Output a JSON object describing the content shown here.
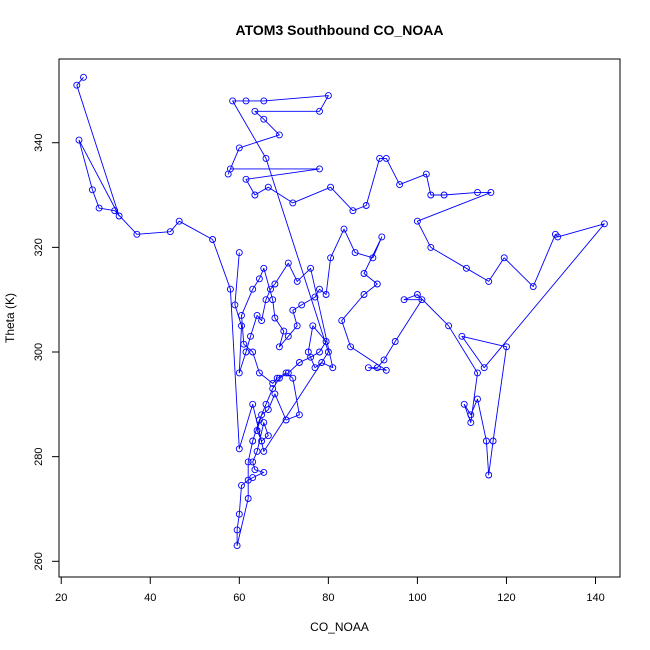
{
  "chart_data": {
    "type": "scatter",
    "title": "ATOM3 Southbound CO_NOAA",
    "xlabel": "CO_NOAA",
    "ylabel": "Theta (K)",
    "xlim": [
      19.5,
      145.5
    ],
    "ylim": [
      257,
      356
    ],
    "xticks": [
      20,
      40,
      60,
      80,
      100,
      120,
      140
    ],
    "yticks": [
      260,
      280,
      300,
      320,
      340
    ],
    "grid": false,
    "legend": "none",
    "colors": {
      "series": "#0000ff",
      "axis": "#000000",
      "background": "#ffffff"
    },
    "series": [
      {
        "style": "line-and-points",
        "points": [
          [
            25,
            352.5
          ],
          [
            23.5,
            351
          ],
          [
            33,
            326
          ],
          [
            24,
            340.5
          ],
          [
            27,
            331
          ],
          [
            28.5,
            327.5
          ],
          [
            32,
            327
          ],
          [
            37,
            322.5
          ],
          [
            44.5,
            323
          ],
          [
            46.5,
            325
          ],
          [
            54,
            321.5
          ],
          [
            58,
            312
          ],
          [
            60,
            281.5
          ],
          [
            63,
            290
          ],
          [
            65.5,
            281
          ],
          [
            80,
            300
          ],
          [
            66,
            337
          ],
          [
            58.5,
            348
          ],
          [
            61.5,
            348
          ],
          [
            65.5,
            348
          ],
          [
            80,
            349
          ],
          [
            78,
            346
          ],
          [
            63.5,
            346
          ],
          [
            65.5,
            344.5
          ],
          [
            69,
            341.5
          ],
          [
            60,
            339
          ],
          [
            57.5,
            334
          ],
          [
            58,
            335
          ],
          [
            78,
            335
          ],
          [
            61.5,
            333
          ],
          [
            63.5,
            330
          ],
          [
            66.5,
            331.5
          ],
          [
            72,
            328.5
          ],
          [
            80.5,
            331.5
          ],
          [
            85.5,
            327
          ],
          [
            88.5,
            328
          ],
          [
            91.5,
            337
          ],
          [
            93,
            337
          ],
          [
            96,
            332
          ],
          [
            102,
            334
          ],
          [
            103,
            330
          ],
          [
            106,
            330
          ],
          [
            113.5,
            330.5
          ],
          [
            116.5,
            330.5
          ],
          [
            100,
            325
          ],
          [
            103,
            320
          ],
          [
            111,
            316
          ],
          [
            116,
            313.5
          ],
          [
            119.5,
            318
          ],
          [
            126,
            312.5
          ],
          [
            131,
            322.5
          ],
          [
            131.5,
            322
          ],
          [
            142,
            324.5
          ],
          [
            115,
            297
          ],
          [
            110,
            303
          ],
          [
            120,
            301
          ],
          [
            117,
            283
          ],
          [
            116,
            276.5
          ],
          [
            115.5,
            283
          ],
          [
            113.5,
            291
          ],
          [
            112,
            288
          ],
          [
            110.5,
            290
          ],
          [
            112,
            286.5
          ],
          [
            113.5,
            296
          ],
          [
            107,
            305
          ],
          [
            100,
            311
          ],
          [
            97,
            310
          ],
          [
            101,
            310
          ],
          [
            95,
            302
          ],
          [
            92.5,
            298.5
          ],
          [
            91,
            297
          ],
          [
            89,
            297
          ],
          [
            93,
            296.5
          ],
          [
            85,
            301
          ],
          [
            83,
            306
          ],
          [
            88,
            311
          ],
          [
            91,
            313
          ],
          [
            88,
            315
          ],
          [
            92,
            322
          ],
          [
            90,
            318
          ],
          [
            86,
            319
          ],
          [
            83.5,
            323.5
          ],
          [
            80.5,
            318
          ],
          [
            79.5,
            311
          ],
          [
            78,
            312
          ],
          [
            77,
            310.5
          ],
          [
            74,
            309
          ],
          [
            72,
            308
          ],
          [
            73,
            305
          ],
          [
            71,
            303
          ],
          [
            69,
            301
          ],
          [
            70,
            304
          ],
          [
            68,
            306.5
          ],
          [
            67.5,
            310
          ],
          [
            65.5,
            316
          ],
          [
            64.5,
            314
          ],
          [
            63,
            312
          ],
          [
            60.5,
            307
          ],
          [
            61,
            301.5
          ],
          [
            63,
            300
          ],
          [
            64.5,
            296
          ],
          [
            67.5,
            294
          ],
          [
            68.5,
            295
          ],
          [
            70.5,
            296
          ],
          [
            72,
            295
          ],
          [
            73.5,
            288
          ],
          [
            70.5,
            287
          ],
          [
            68,
            292
          ],
          [
            66.5,
            289
          ],
          [
            65,
            288
          ],
          [
            64,
            285
          ],
          [
            65,
            283
          ],
          [
            66.5,
            284
          ],
          [
            65.5,
            286.5
          ],
          [
            64,
            281
          ],
          [
            63,
            279
          ],
          [
            63.5,
            277.5
          ],
          [
            65.5,
            277
          ],
          [
            63,
            276
          ],
          [
            62,
            275.5
          ],
          [
            60.5,
            274.5
          ],
          [
            60,
            269
          ],
          [
            59.5,
            266
          ],
          [
            59.5,
            263
          ],
          [
            62,
            272
          ],
          [
            62,
            279
          ],
          [
            63,
            283
          ],
          [
            64.5,
            287
          ],
          [
            66,
            290
          ],
          [
            67.5,
            293
          ],
          [
            69,
            295
          ],
          [
            71,
            296
          ],
          [
            73.5,
            298
          ],
          [
            76,
            299
          ],
          [
            78,
            300
          ],
          [
            79.5,
            302
          ],
          [
            76.5,
            305
          ],
          [
            75.5,
            300
          ],
          [
            77,
            297
          ],
          [
            78.5,
            298
          ],
          [
            81,
            297
          ],
          [
            76,
            316
          ],
          [
            73,
            313.5
          ],
          [
            71,
            317
          ],
          [
            68,
            313
          ],
          [
            67,
            312
          ],
          [
            66,
            310
          ],
          [
            65,
            306
          ],
          [
            64,
            307
          ],
          [
            62.5,
            303
          ],
          [
            61.5,
            300
          ],
          [
            60,
            296
          ],
          [
            60.5,
            305
          ],
          [
            59,
            309
          ],
          [
            60,
            319
          ]
        ]
      }
    ]
  }
}
